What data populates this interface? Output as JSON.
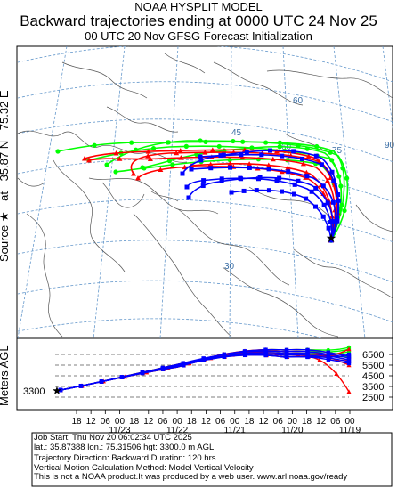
{
  "header": {
    "model": "NOAA HYSPLIT MODEL",
    "title": "Backward trajectories ending at 0000 UTC 24 Nov 25",
    "subtitle": "00 UTC 20 Nov    GFSG  Forecast Initialization"
  },
  "side_label": {
    "source_word": "Source",
    "star": "★",
    "at": "at",
    "lat": "35.87 N",
    "lon": "75.32 E"
  },
  "map": {
    "lat_labels": [
      "60",
      "45",
      "30"
    ],
    "lon_labels": [
      "60",
      "75",
      "90"
    ],
    "colors": {
      "red": "#ff0000",
      "blue": "#0000ff",
      "green": "#00ff00",
      "grid": "#6699cc"
    }
  },
  "vertical": {
    "ylabel": "Meters AGL",
    "start_height": "3300",
    "y_ticks": [
      "6500",
      "5500",
      "4500",
      "3500",
      "2500"
    ],
    "x_hours": [
      "18",
      "12",
      "06",
      "00",
      "18",
      "12",
      "06",
      "00",
      "18",
      "12",
      "06",
      "00",
      "18",
      "12",
      "06",
      "00",
      "18",
      "12",
      "06",
      "00"
    ],
    "x_dates": [
      "11/23",
      "11/22",
      "11/21",
      "11/20",
      "11/19"
    ]
  },
  "footer": {
    "line1": "Job Start: Thu Nov 20 06:02:34 UTC 2025",
    "line2": "lat.: 35.87388   lon.: 75.31506   hgt: 3300.0 m AGL",
    "line3": "Trajectory Direction: Backward       Duration: 120 hrs",
    "line4": "Vertical Motion Calculation Method: Model Vertical Velocity",
    "line5": "This is not a NOAA product.It was produced by a web user. www.arl.noaa.gov/ready"
  }
}
